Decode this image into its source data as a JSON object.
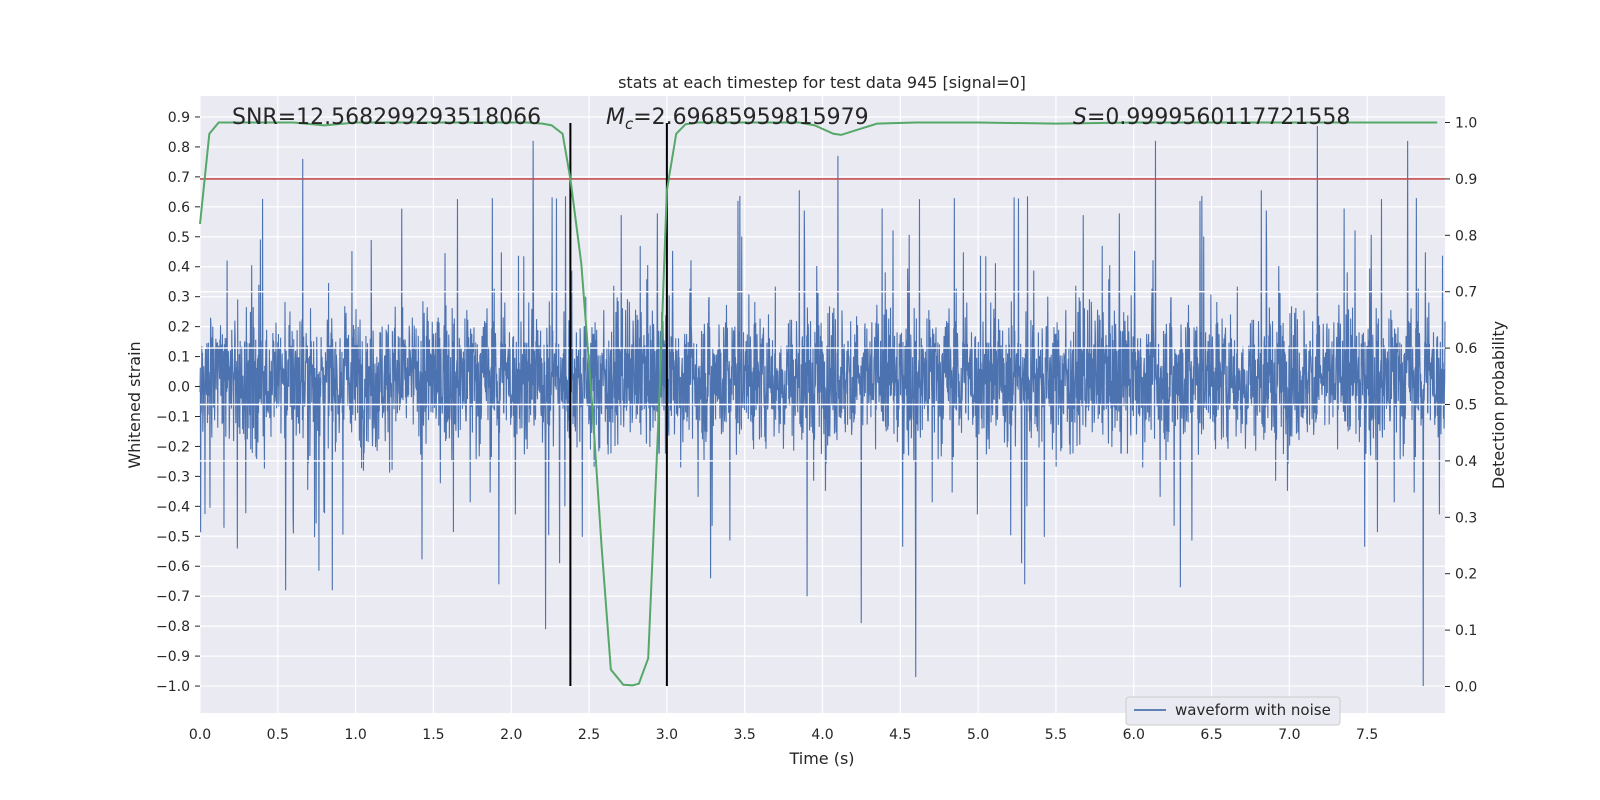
{
  "chart_data": {
    "type": "line",
    "title": "stats at each timestep for test data 945 [signal=0]",
    "xlabel": "Time (s)",
    "ylabel_left": "Whitened strain",
    "ylabel_right": "Detection probability",
    "xlim": [
      0.0,
      8.0
    ],
    "ylim_left": [
      -1.09,
      0.97
    ],
    "ylim_right": [
      -0.047,
      1.047
    ],
    "x_ticks": [
      "0.0",
      "0.5",
      "1.0",
      "1.5",
      "2.0",
      "2.5",
      "3.0",
      "3.5",
      "4.0",
      "4.5",
      "5.0",
      "5.5",
      "6.0",
      "6.5",
      "7.0",
      "7.5"
    ],
    "y_ticks_left": [
      "0.9",
      "0.8",
      "0.7",
      "0.6",
      "0.5",
      "0.4",
      "0.3",
      "0.2",
      "0.1",
      "0.0",
      "−0.1",
      "−0.2",
      "−0.3",
      "−0.4",
      "−0.5",
      "−0.6",
      "−0.7",
      "−0.8",
      "−0.9",
      "−1.0"
    ],
    "y_ticks_right": [
      "1.0",
      "0.9",
      "0.8",
      "0.7",
      "0.6",
      "0.5",
      "0.4",
      "0.3",
      "0.2",
      "0.1",
      "0.0"
    ],
    "annotations": {
      "snr": "SNR=12.568299293518066",
      "mc_symbol": "M",
      "mc_sub": "c",
      "mc_value": "=2.69685959815979",
      "s_symbol": "S",
      "s_value": "=0.9999560117721558"
    },
    "legend": {
      "label": "waveform with noise",
      "position": "lower-right"
    },
    "threshold": {
      "value_right": 0.9,
      "color": "#c44e52"
    },
    "vertical_lines": [
      2.38,
      3.0
    ],
    "vertical_lines_range_left": [
      -1.0,
      0.88
    ],
    "waveform": {
      "name": "waveform with noise",
      "color": "#4c72b0",
      "duration": 8.0,
      "num_samples": 4000,
      "typical_range": [
        -0.27,
        0.33
      ],
      "peaks": [
        {
          "t": 0.66,
          "v": 0.76
        },
        {
          "t": 2.14,
          "v": 0.82
        },
        {
          "t": 2.22,
          "v": -0.81
        },
        {
          "t": 4.1,
          "v": 0.77
        },
        {
          "t": 4.25,
          "v": -0.79
        },
        {
          "t": 4.6,
          "v": -0.97
        },
        {
          "t": 6.14,
          "v": 0.82
        },
        {
          "t": 7.18,
          "v": 0.87
        },
        {
          "t": 7.76,
          "v": 0.82
        },
        {
          "t": 7.86,
          "v": 0.88
        },
        {
          "t": 7.86,
          "v": -1.0
        },
        {
          "t": 0.55,
          "v": -0.68
        },
        {
          "t": 0.85,
          "v": -0.68
        },
        {
          "t": 1.92,
          "v": -0.66
        },
        {
          "t": 3.28,
          "v": -0.64
        },
        {
          "t": 3.9,
          "v": -0.7
        },
        {
          "t": 5.3,
          "v": -0.66
        },
        {
          "t": 6.3,
          "v": -0.67
        }
      ]
    },
    "probability": {
      "name": "detection probability",
      "color": "#55a868",
      "x": [
        0.0,
        0.06,
        0.12,
        0.3,
        0.6,
        0.8,
        1.0,
        1.3,
        1.6,
        1.9,
        2.1,
        2.2,
        2.26,
        2.33,
        2.38,
        2.45,
        2.52,
        2.58,
        2.64,
        2.72,
        2.78,
        2.82,
        2.88,
        2.95,
        3.0,
        3.06,
        3.12,
        3.2,
        3.5,
        3.85,
        3.95,
        4.07,
        4.12,
        4.2,
        4.35,
        4.6,
        5.0,
        5.5,
        6.0,
        6.5,
        7.0,
        7.5,
        7.95
      ],
      "y": [
        0.82,
        0.98,
        1.0,
        1.0,
        1.0,
        0.995,
        1.0,
        1.0,
        1.0,
        1.0,
        1.0,
        0.998,
        0.995,
        0.98,
        0.9,
        0.75,
        0.5,
        0.25,
        0.03,
        0.003,
        0.002,
        0.005,
        0.05,
        0.5,
        0.88,
        0.98,
        0.997,
        1.0,
        1.0,
        1.0,
        0.995,
        0.98,
        0.978,
        0.985,
        0.998,
        1.0,
        1.0,
        0.998,
        1.0,
        1.0,
        1.0,
        1.0,
        1.0
      ]
    }
  }
}
